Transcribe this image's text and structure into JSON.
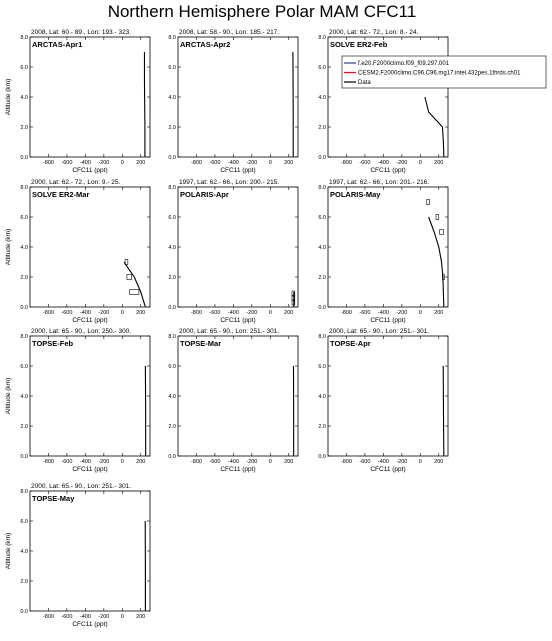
{
  "figure": {
    "title": "Northern Hemisphere Polar MAM CFC11",
    "xlabel": "CFC11 (ppt)",
    "ylabel": "Altitude (km)",
    "xticks": [
      "-800",
      "-600",
      "-400",
      "-200",
      "0",
      "200"
    ],
    "yticks": [
      "0.0",
      "2.0",
      "4.0",
      "6.0",
      "8.0"
    ]
  },
  "legend": {
    "placement": "inside panel 3",
    "entries": [
      {
        "label": "f.e20.F2000climo.f09_f09.297.001",
        "color": "#1f3fbf"
      },
      {
        "label": "CESM2.F2000climo.C96.C96.mg17.intel.432pes.1thrds.ch01",
        "color": "#d41c1c"
      },
      {
        "label": "Data",
        "color": "#000000"
      }
    ]
  },
  "chart_data": [
    {
      "type": "line",
      "subtitle": "2008, Lat: 60.- 89., Lon: 193.- 323.",
      "label": "ARCTAS-Apr1",
      "xlim": [
        -1000,
        300
      ],
      "ylim": [
        0,
        8
      ],
      "series": [
        {
          "name": "Data",
          "x": [
            245,
            245,
            240,
            240
          ],
          "y": [
            0,
            2,
            5,
            7
          ]
        }
      ],
      "boxes": []
    },
    {
      "type": "line",
      "subtitle": "2008, Lat: 58.- 90., Lon: 185.- 217.",
      "label": "ARCTAS-Apr2",
      "xlim": [
        -1000,
        300
      ],
      "ylim": [
        0,
        8
      ],
      "series": [
        {
          "name": "Data",
          "x": [
            248,
            248,
            245
          ],
          "y": [
            0,
            3,
            7
          ]
        }
      ],
      "boxes": []
    },
    {
      "type": "line",
      "subtitle": "2000, Lat: 62.- 72., Lon: 8.- 24.",
      "label": "SOLVE ER2-Feb",
      "xlim": [
        -1000,
        300
      ],
      "ylim": [
        0,
        8
      ],
      "series": [
        {
          "name": "Data",
          "x": [
            255,
            250,
            240,
            90,
            50
          ],
          "y": [
            0,
            1,
            2,
            3,
            4
          ]
        }
      ],
      "boxes": []
    },
    {
      "type": "line",
      "subtitle": "2000, Lat: 62.- 72., Lon: 9.- 25.",
      "label": "SOLVE ER2-Mar",
      "xlim": [
        -1000,
        300
      ],
      "ylim": [
        0,
        8
      ],
      "series": [
        {
          "name": "Data",
          "x": [
            250,
            200,
            130,
            40,
            20
          ],
          "y": [
            0,
            1,
            2,
            2.8,
            3
          ]
        }
      ],
      "boxes": [
        {
          "x0": 80,
          "x1": 180,
          "y": 1.0
        },
        {
          "x0": 50,
          "x1": 100,
          "y": 2.0
        },
        {
          "x0": 30,
          "x1": 60,
          "y": 3.0
        }
      ]
    },
    {
      "type": "line",
      "subtitle": "1997, Lat: 62.- 66., Lon: 200.- 215.",
      "label": "POLARIS-Apr",
      "xlim": [
        -1000,
        300
      ],
      "ylim": [
        0,
        8
      ],
      "series": [
        {
          "name": "Data",
          "x": [
            255,
            255
          ],
          "y": [
            0,
            1
          ]
        }
      ],
      "boxes": [
        {
          "x0": 235,
          "x1": 265,
          "y": 0.3
        },
        {
          "x0": 235,
          "x1": 265,
          "y": 0.6
        },
        {
          "x0": 235,
          "x1": 265,
          "y": 0.9
        }
      ]
    },
    {
      "type": "line",
      "subtitle": "1997, Lat: 62.- 66., Lon: 201.- 216.",
      "label": "POLARIS-May",
      "xlim": [
        -1000,
        300
      ],
      "ylim": [
        0,
        8
      ],
      "series": [
        {
          "name": "Data",
          "x": [
            255,
            250,
            245,
            230,
            200,
            150,
            90
          ],
          "y": [
            0,
            1,
            2,
            3,
            4,
            5,
            6
          ]
        }
      ],
      "boxes": [
        {
          "x0": 240,
          "x1": 260,
          "y": 2.0
        },
        {
          "x0": 210,
          "x1": 250,
          "y": 5.0
        },
        {
          "x0": 170,
          "x1": 200,
          "y": 6.0
        },
        {
          "x0": 70,
          "x1": 100,
          "y": 7.0
        }
      ]
    },
    {
      "type": "line",
      "subtitle": "2000, Lat: 65.- 90., Lon: 250.- 300.",
      "label": "TOPSE-Feb",
      "xlim": [
        -1000,
        300
      ],
      "ylim": [
        0,
        8
      ],
      "series": [
        {
          "name": "Data",
          "x": [
            253,
            253,
            250
          ],
          "y": [
            0,
            3,
            6
          ]
        }
      ],
      "boxes": []
    },
    {
      "type": "line",
      "subtitle": "2000, Lat: 65.- 90., Lon: 251.- 301.",
      "label": "TOPSE-Mar",
      "xlim": [
        -1000,
        300
      ],
      "ylim": [
        0,
        8
      ],
      "series": [
        {
          "name": "Data",
          "x": [
            253,
            253,
            251
          ],
          "y": [
            0,
            3,
            6
          ]
        }
      ],
      "boxes": []
    },
    {
      "type": "line",
      "subtitle": "2000, Lat: 65.- 90., Lon: 251.- 301.",
      "label": "TOPSE-Apr",
      "xlim": [
        -1000,
        300
      ],
      "ylim": [
        0,
        8
      ],
      "series": [
        {
          "name": "Data",
          "x": [
            255,
            252,
            250,
            248
          ],
          "y": [
            0,
            2,
            4,
            6
          ]
        }
      ],
      "boxes": []
    },
    {
      "type": "line",
      "subtitle": "2000, Lat: 65.- 90., Lon: 251.- 301.",
      "label": "TOPSE-May",
      "xlim": [
        -1000,
        300
      ],
      "ylim": [
        0,
        8
      ],
      "series": [
        {
          "name": "Data",
          "x": [
            250,
            250,
            248
          ],
          "y": [
            0,
            3,
            6
          ]
        }
      ],
      "boxes": []
    }
  ]
}
